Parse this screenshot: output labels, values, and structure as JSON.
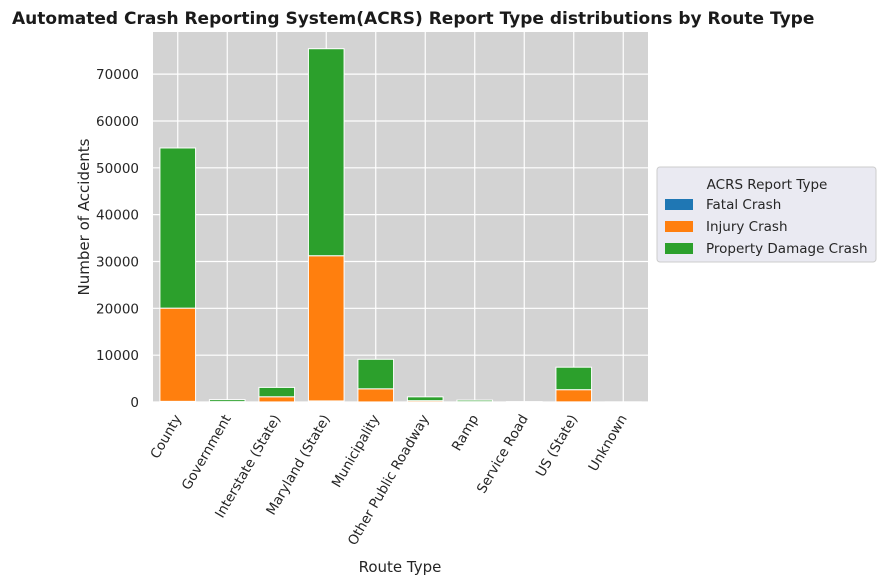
{
  "chart_data": {
    "type": "bar",
    "stacked": true,
    "title": "Automated Crash Reporting System(ACRS) Report Type distributions by Route Type",
    "xlabel": "Route Type",
    "ylabel": "Number of Accidents",
    "ylim": [
      0,
      79000
    ],
    "yticks": [
      0,
      10000,
      20000,
      30000,
      40000,
      50000,
      60000,
      70000
    ],
    "grid": true,
    "categories": [
      "County",
      "Government",
      "Interstate (State)",
      "Maryland (State)",
      "Municipality",
      "Other Public Roadway",
      "Ramp",
      "Service Road",
      "US (State)",
      "Unknown"
    ],
    "series": [
      {
        "name": "Fatal Crash",
        "color": "#1f77b4",
        "values": [
          140,
          2,
          15,
          230,
          15,
          3,
          1,
          0,
          30,
          0
        ]
      },
      {
        "name": "Injury Crash",
        "color": "#ff7f0e",
        "values": [
          19900,
          80,
          1100,
          31000,
          2800,
          280,
          70,
          15,
          2600,
          5
        ]
      },
      {
        "name": "Property Damage Crash",
        "color": "#2ca02c",
        "values": [
          34200,
          420,
          2000,
          44200,
          6300,
          820,
          330,
          60,
          4800,
          20
        ]
      }
    ],
    "legend": {
      "title": "ACRS Report Type",
      "placement": "outside-right"
    },
    "plot_background": "#d3d3d3",
    "grid_color": "#ffffff"
  }
}
